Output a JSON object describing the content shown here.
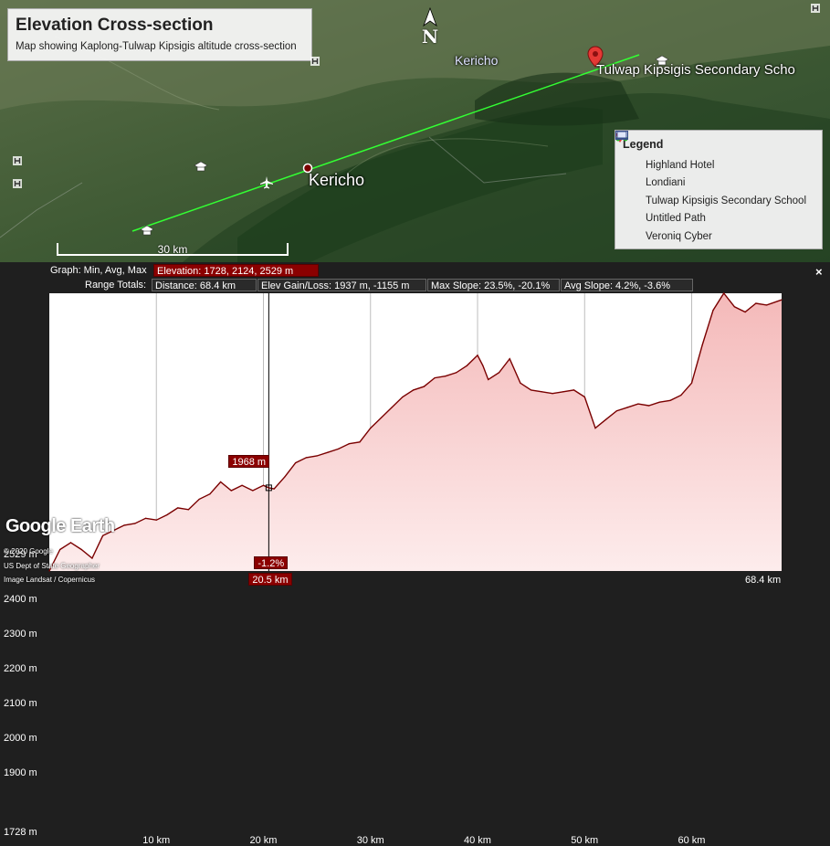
{
  "map": {
    "title": "Elevation Cross-section",
    "subtitle": "Map showing Kaplong-Tulwap Kipsigis altitude cross-section",
    "north_label": "N",
    "places": {
      "kericho_top": "Kericho",
      "kericho_main": "Kericho",
      "tulwap": "Tulwap Kipsigis Secondary Scho"
    },
    "scale_label": "30 km",
    "legend": {
      "title": "Legend",
      "items": [
        {
          "label": "Highland Hotel",
          "icon": "bed-icon"
        },
        {
          "label": "Londiani",
          "icon": "dot-icon"
        },
        {
          "label": "Tulwap Kipsigis Secondary School",
          "icon": "pin-icon"
        },
        {
          "label": "Untitled Path",
          "icon": "path-icon"
        },
        {
          "label": "Veroniq Cyber",
          "icon": "computer-icon"
        }
      ]
    },
    "colors": {
      "path": "#33ff33",
      "pin": "#e53935"
    }
  },
  "profile": {
    "graph_label": "Graph: Min, Avg, Max",
    "elevation_stat": "Elevation: 1728, 2124, 2529 m",
    "range_label": "Range Totals:",
    "distance": "Distance: 68.4 km",
    "gain_loss": "Elev Gain/Loss: 1937 m, -1155 m",
    "max_slope": "Max Slope: 23.5%, -20.1%",
    "avg_slope": "Avg Slope: 4.2%, -3.6%",
    "cursor_elev": "1968 m",
    "cursor_slope": "-1.2%",
    "cursor_dist": "20.5 km",
    "end_dist": "68.4 km",
    "close_label": "×",
    "brand": "Google Earth",
    "credits": [
      "© 2020 Google",
      "US Dept of State Geographer",
      "Image Landsat / Copernicus"
    ]
  },
  "chart_data": {
    "type": "area",
    "xlabel": "",
    "ylabel": "",
    "x_unit": "km",
    "y_unit": "m",
    "xlim": [
      0,
      68.4
    ],
    "ylim": [
      1728,
      2529
    ],
    "y_ticks": [
      "2529 m",
      "2400 m",
      "2300 m",
      "2200 m",
      "2100 m",
      "2000 m",
      "1900 m",
      "1728 m"
    ],
    "y_tick_values": [
      2529,
      2400,
      2300,
      2200,
      2100,
      2000,
      1900,
      1728
    ],
    "x_ticks": [
      "10 km",
      "20 km",
      "30 km",
      "40 km",
      "50 km",
      "60 km"
    ],
    "x_tick_values": [
      10,
      20,
      30,
      40,
      50,
      60
    ],
    "x": [
      0,
      1,
      2,
      3,
      4,
      5,
      6,
      7,
      8,
      9,
      10,
      11,
      12,
      13,
      14,
      15,
      16,
      17,
      18,
      19,
      20,
      20.5,
      21,
      22,
      23,
      24,
      25,
      26,
      27,
      28,
      29,
      30,
      31,
      32,
      33,
      34,
      35,
      36,
      37,
      38,
      39,
      40,
      40.5,
      41,
      42,
      43,
      44,
      45,
      46,
      47,
      48,
      49,
      50,
      51,
      52,
      53,
      54,
      55,
      56,
      57,
      58,
      59,
      60,
      61,
      62,
      63,
      64,
      65,
      66,
      67,
      68.4
    ],
    "values": [
      1728,
      1790,
      1810,
      1790,
      1765,
      1830,
      1845,
      1860,
      1865,
      1880,
      1875,
      1890,
      1910,
      1905,
      1935,
      1950,
      1985,
      1960,
      1975,
      1960,
      1975,
      1968,
      1965,
      2000,
      2040,
      2055,
      2060,
      2070,
      2080,
      2095,
      2100,
      2140,
      2170,
      2200,
      2230,
      2250,
      2260,
      2285,
      2290,
      2300,
      2320,
      2350,
      2320,
      2280,
      2300,
      2340,
      2270,
      2250,
      2245,
      2240,
      2245,
      2250,
      2230,
      2140,
      2165,
      2190,
      2200,
      2210,
      2205,
      2215,
      2220,
      2235,
      2270,
      2380,
      2480,
      2529,
      2490,
      2475,
      2500,
      2495,
      2510
    ],
    "cursor": {
      "x": 20.5,
      "y": 1968
    }
  }
}
